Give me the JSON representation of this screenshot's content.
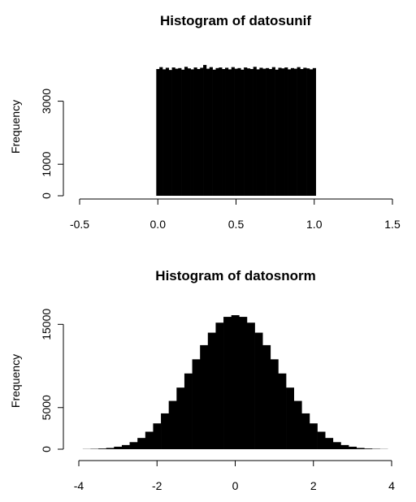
{
  "chart_data": [
    {
      "type": "bar",
      "title": "Histogram of datosunif",
      "xlabel": "",
      "ylabel": "Frequency",
      "xlim": [
        -0.5,
        1.5
      ],
      "ylim": [
        0,
        4200
      ],
      "x_ticks": [
        "-0.5",
        "0.0",
        "0.5",
        "1.0",
        "1.5"
      ],
      "y_ticks": [
        "0",
        "1000",
        "3000"
      ],
      "x": [
        0.0,
        0.02,
        0.04,
        0.06,
        0.08,
        0.1,
        0.12,
        0.14,
        0.16,
        0.18,
        0.2,
        0.22,
        0.24,
        0.26,
        0.28,
        0.3,
        0.32,
        0.34,
        0.36,
        0.38,
        0.4,
        0.42,
        0.44,
        0.46,
        0.48,
        0.5,
        0.52,
        0.54,
        0.56,
        0.58,
        0.6,
        0.62,
        0.64,
        0.66,
        0.68,
        0.7,
        0.72,
        0.74,
        0.76,
        0.78,
        0.8,
        0.82,
        0.84,
        0.86,
        0.88,
        0.9,
        0.92,
        0.94,
        0.96,
        0.98,
        1.0
      ],
      "values": [
        4020,
        4080,
        4010,
        4060,
        3990,
        4070,
        4030,
        4050,
        4000,
        4090,
        4040,
        4010,
        4070,
        4020,
        4060,
        4150,
        4030,
        4080,
        4000,
        4050,
        4070,
        4020,
        4060,
        4010,
        4080,
        4030,
        4050,
        4000,
        4070,
        4040,
        4020,
        4090,
        4010,
        4060,
        4030,
        4050,
        4020,
        4080,
        4000,
        4060,
        4040,
        4070,
        4010,
        4050,
        4030,
        4080,
        4020,
        4060,
        4040,
        4010,
        4050
      ]
    },
    {
      "type": "bar",
      "title": "Histogram of datosnorm",
      "xlabel": "",
      "ylabel": "Frequency",
      "xlim": [
        -4,
        4
      ],
      "ylim": [
        0,
        16200
      ],
      "x_ticks": [
        "-4",
        "-2",
        "0",
        "2",
        "4"
      ],
      "y_ticks": [
        "0",
        "5000",
        "15000"
      ],
      "x": [
        -3.8,
        -3.6,
        -3.4,
        -3.2,
        -3.0,
        -2.8,
        -2.6,
        -2.4,
        -2.2,
        -2.0,
        -1.8,
        -1.6,
        -1.4,
        -1.2,
        -1.0,
        -0.8,
        -0.6,
        -0.4,
        -0.2,
        0.0,
        0.2,
        0.4,
        0.6,
        0.8,
        1.0,
        1.2,
        1.4,
        1.6,
        1.8,
        2.0,
        2.2,
        2.4,
        2.6,
        2.8,
        3.0,
        3.2,
        3.4,
        3.6,
        3.8
      ],
      "values": [
        20,
        40,
        80,
        150,
        300,
        500,
        850,
        1350,
        2100,
        3100,
        4300,
        5800,
        7400,
        9100,
        10800,
        12500,
        14000,
        15200,
        15900,
        16100,
        15900,
        15200,
        14000,
        12500,
        10800,
        9100,
        7400,
        5800,
        4300,
        3100,
        2100,
        1350,
        850,
        500,
        300,
        150,
        80,
        40,
        20
      ]
    }
  ]
}
